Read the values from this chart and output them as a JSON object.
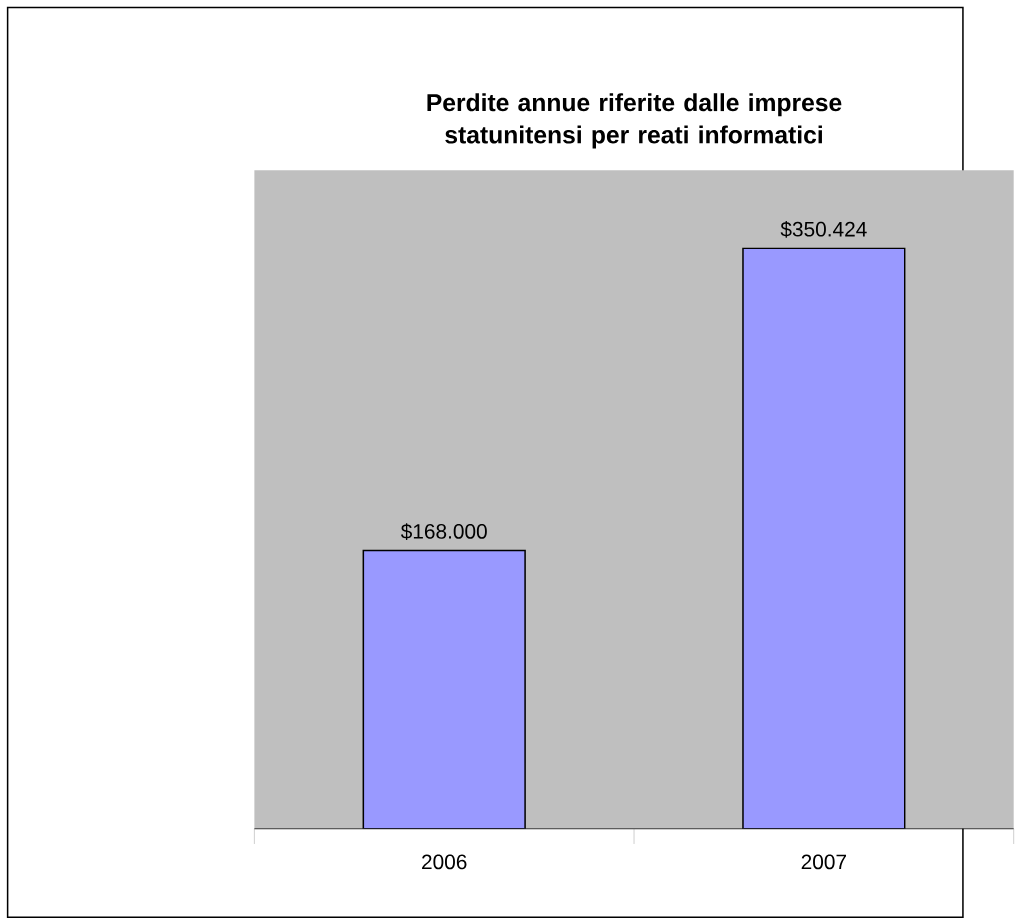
{
  "chart_data": {
    "type": "bar",
    "title": "Perdite annue riferite dalle imprese statunitensi per reati informatici",
    "categories": [
      "2006",
      "2007"
    ],
    "values": [
      168000,
      350424
    ],
    "value_labels": [
      "$168.000",
      "$350.424"
    ],
    "color": "#9999ff"
  }
}
